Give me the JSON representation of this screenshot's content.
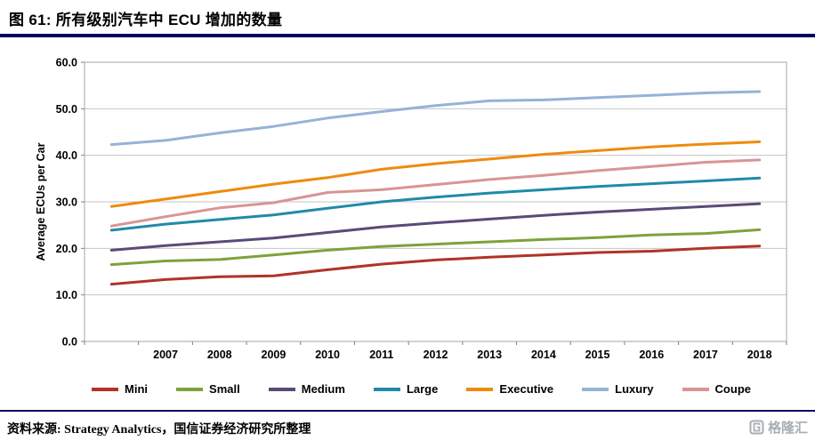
{
  "header": {
    "title": "图 61:  所有级别汽车中 ECU 增加的数量"
  },
  "chart_data": {
    "type": "line",
    "x": [
      2006,
      2007,
      2008,
      2009,
      2010,
      2011,
      2012,
      2013,
      2014,
      2015,
      2016,
      2017,
      2018
    ],
    "x_tick_labels": [
      "",
      "2007",
      "2008",
      "2009",
      "2010",
      "2011",
      "2012",
      "2013",
      "2014",
      "2015",
      "2016",
      "2017",
      "2018"
    ],
    "ylabel": "Average ECUs per Car",
    "ylim": [
      0,
      60
    ],
    "ytick_step": 10,
    "ytick_labels": [
      "0.0",
      "10.0",
      "20.0",
      "30.0",
      "40.0",
      "50.0",
      "60.0"
    ],
    "grid": true,
    "legend_position": "bottom",
    "colors": {
      "grid": "#C6C6C6",
      "axis": "#808080",
      "plot_border": "#A6A6A6",
      "title_rule": "#000060"
    },
    "series": [
      {
        "name": "Mini",
        "color": "#B23228",
        "values": [
          12.3,
          13.3,
          13.9,
          14.1,
          15.4,
          16.6,
          17.5,
          18.1,
          18.6,
          19.1,
          19.4,
          20.0,
          20.5
        ]
      },
      {
        "name": "Small",
        "color": "#7EA13D",
        "values": [
          16.5,
          17.3,
          17.6,
          18.6,
          19.6,
          20.4,
          20.9,
          21.4,
          21.9,
          22.3,
          22.9,
          23.2,
          24.0
        ]
      },
      {
        "name": "Medium",
        "color": "#5B4A78",
        "values": [
          19.6,
          20.6,
          21.4,
          22.2,
          23.4,
          24.6,
          25.5,
          26.3,
          27.1,
          27.8,
          28.4,
          29.0,
          29.6
        ]
      },
      {
        "name": "Large",
        "color": "#1F8BA8",
        "values": [
          23.9,
          25.2,
          26.2,
          27.2,
          28.6,
          30.0,
          31.0,
          31.9,
          32.6,
          33.3,
          33.9,
          34.5,
          35.1
        ]
      },
      {
        "name": "Executive",
        "color": "#EE8B0F",
        "values": [
          29.0,
          30.6,
          32.2,
          33.8,
          35.2,
          37.0,
          38.2,
          39.2,
          40.2,
          41.0,
          41.8,
          42.4,
          42.9
        ]
      },
      {
        "name": "Luxury",
        "color": "#95B3D7",
        "values": [
          42.3,
          43.2,
          44.8,
          46.2,
          48.0,
          49.4,
          50.7,
          51.7,
          51.9,
          52.4,
          52.9,
          53.4,
          53.7
        ]
      },
      {
        "name": "Coupe",
        "color": "#D89593",
        "values": [
          24.8,
          26.8,
          28.7,
          29.8,
          32.0,
          32.6,
          33.7,
          34.8,
          35.7,
          36.7,
          37.6,
          38.5,
          39.0
        ]
      }
    ]
  },
  "footer": {
    "source": "资料来源: Strategy Analytics，国信证券经济研究所整理"
  },
  "watermark": {
    "text": "格隆汇"
  }
}
